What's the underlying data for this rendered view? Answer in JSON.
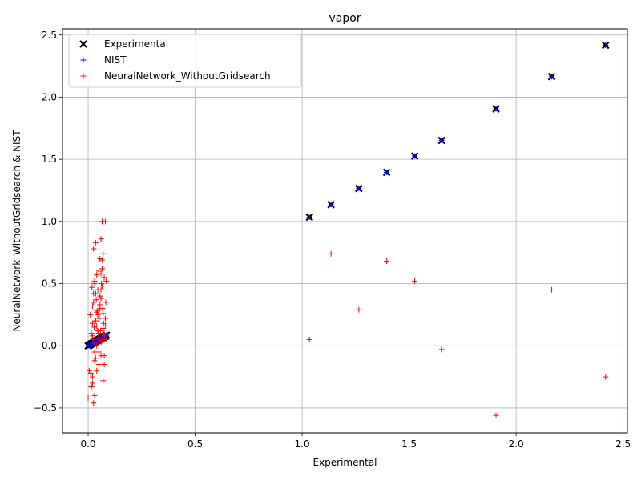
{
  "chart_data": {
    "type": "scatter",
    "title": "vapor",
    "xlabel": "Experimental",
    "ylabel": "NeuralNetwork_WithoutGridsearch & NIST",
    "xlim": [
      -0.12,
      2.52
    ],
    "ylim": [
      -0.7,
      2.55
    ],
    "xticks": [
      0.0,
      0.5,
      1.0,
      1.5,
      2.0,
      2.5
    ],
    "xtick_labels": [
      "0.0",
      "0.5",
      "1.0",
      "1.5",
      "2.0",
      "2.5"
    ],
    "yticks": [
      -0.5,
      0.0,
      0.5,
      1.0,
      1.5,
      2.0,
      2.5
    ],
    "ytick_labels": [
      "−0.5",
      "0.0",
      "0.5",
      "1.0",
      "1.5",
      "2.0",
      "2.5"
    ],
    "grid": true,
    "legend_position": "top-left",
    "series": [
      {
        "name": "Experimental",
        "marker": "x",
        "color": "#000000",
        "x": [
          0.0,
          0.004,
          0.008,
          0.012,
          0.016,
          0.02,
          0.025,
          0.03,
          0.035,
          0.04,
          0.045,
          0.05,
          0.055,
          0.06,
          0.065,
          0.07,
          0.075,
          0.08,
          0.085,
          1.034,
          1.135,
          1.265,
          1.395,
          1.526,
          1.652,
          1.906,
          2.166,
          2.418
        ],
        "y": [
          0.0,
          0.004,
          0.008,
          0.012,
          0.016,
          0.02,
          0.025,
          0.03,
          0.035,
          0.04,
          0.045,
          0.05,
          0.055,
          0.06,
          0.065,
          0.07,
          0.075,
          0.08,
          0.085,
          1.034,
          1.135,
          1.265,
          1.395,
          1.526,
          1.652,
          1.906,
          2.166,
          2.418
        ]
      },
      {
        "name": "NIST",
        "marker": "+",
        "color": "#0000ff",
        "x": [
          0.0,
          0.004,
          0.008,
          0.012,
          0.016,
          0.02,
          0.025,
          0.03,
          0.035,
          0.04,
          0.045,
          0.05,
          0.055,
          0.06,
          0.065,
          0.07,
          0.075,
          0.08,
          0.085,
          1.034,
          1.135,
          1.265,
          1.395,
          1.526,
          1.652,
          1.906,
          2.166,
          2.418
        ],
        "y": [
          0.0,
          0.004,
          0.008,
          0.012,
          0.016,
          0.02,
          0.025,
          0.03,
          0.035,
          0.04,
          0.045,
          0.05,
          0.055,
          0.06,
          0.065,
          0.07,
          0.075,
          0.08,
          0.085,
          1.034,
          1.135,
          1.265,
          1.395,
          1.526,
          1.652,
          1.906,
          2.166,
          2.418
        ]
      },
      {
        "name": "NeuralNetwork_WithoutGridsearch",
        "marker": "+",
        "color": "#ff0000",
        "x": [
          0.0,
          0.005,
          0.01,
          0.012,
          0.015,
          0.018,
          0.02,
          0.02,
          0.022,
          0.025,
          0.025,
          0.028,
          0.03,
          0.03,
          0.032,
          0.035,
          0.035,
          0.038,
          0.04,
          0.04,
          0.042,
          0.045,
          0.048,
          0.05,
          0.05,
          0.052,
          0.055,
          0.058,
          0.06,
          0.06,
          0.062,
          0.065,
          0.065,
          0.068,
          0.07,
          0.07,
          0.072,
          0.075,
          0.078,
          0.08,
          0.082,
          0.085,
          0.085,
          0.088,
          0.015,
          0.02,
          0.025,
          0.03,
          0.035,
          0.04,
          0.045,
          0.05,
          0.055,
          0.06,
          0.065,
          0.07,
          0.075,
          0.08,
          0.03,
          0.04,
          0.05,
          0.06,
          0.07,
          0.02,
          0.03,
          0.045,
          0.055,
          0.065,
          0.075,
          0.025,
          0.035,
          0.05,
          0.06,
          0.07,
          0.08,
          0.04,
          0.055,
          0.065,
          0.02,
          0.03,
          0.045,
          0.06,
          0.075,
          1.034,
          1.135,
          1.265,
          1.395,
          1.526,
          1.652,
          1.906,
          2.166,
          2.418
        ],
        "y": [
          -0.42,
          -0.2,
          0.25,
          -0.22,
          0.1,
          0.47,
          -0.3,
          0.32,
          0.05,
          -0.46,
          0.78,
          0.15,
          -0.4,
          0.52,
          0.2,
          0.83,
          -0.1,
          0.37,
          0.57,
          0.0,
          0.28,
          0.45,
          0.1,
          0.6,
          -0.05,
          0.22,
          0.4,
          0.12,
          0.86,
          0.03,
          0.5,
          1.0,
          0.69,
          0.3,
          0.74,
          -0.28,
          0.18,
          0.55,
          0.08,
          1.0,
          0.35,
          0.52,
          0.05,
          0.1,
          -0.33,
          0.08,
          0.35,
          -0.12,
          0.42,
          0.16,
          0.25,
          0.02,
          0.3,
          0.45,
          0.62,
          0.14,
          -0.08,
          0.22,
          0.5,
          -0.2,
          0.12,
          0.38,
          0.26,
          0.18,
          -0.05,
          0.06,
          0.33,
          0.48,
          0.1,
          0.42,
          0.2,
          -0.15,
          0.58,
          0.08,
          0.16,
          0.27,
          0.7,
          0.04,
          -0.25,
          0.02,
          0.12,
          -0.08,
          -0.15,
          0.05,
          0.74,
          0.29,
          0.68,
          0.52,
          -0.03,
          -0.56,
          0.45,
          -0.25
        ]
      }
    ]
  }
}
